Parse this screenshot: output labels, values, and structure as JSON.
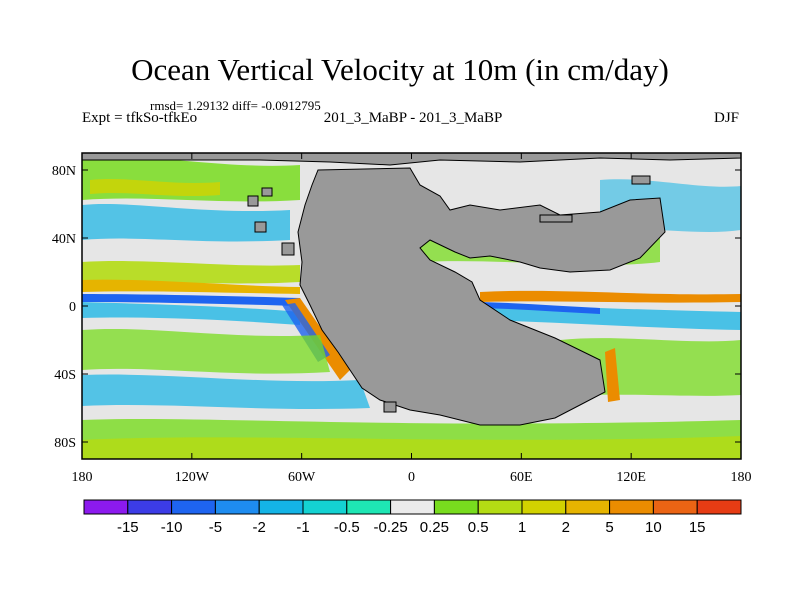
{
  "title": "Ocean Vertical Velocity at 10m (in cm/day)",
  "stats": "rmsd= 1.29132 diff= -0.0912795",
  "left_label": "Expt = tfkSo-tfkEo",
  "center_label": "201_3_MaBP - 201_3_MaBP",
  "right_label": "DJF",
  "map": {
    "lon_range": [
      -180,
      180
    ],
    "lat_range": [
      -90,
      90
    ],
    "x_ticks": [
      {
        "value": -180,
        "label": "180"
      },
      {
        "value": -120,
        "label": "120W"
      },
      {
        "value": -60,
        "label": "60W"
      },
      {
        "value": 0,
        "label": "0"
      },
      {
        "value": 60,
        "label": "60E"
      },
      {
        "value": 120,
        "label": "120E"
      },
      {
        "value": 180,
        "label": "180"
      }
    ],
    "y_ticks": [
      {
        "value": 80,
        "label": "80N"
      },
      {
        "value": 40,
        "label": "40N"
      },
      {
        "value": 0,
        "label": "0"
      },
      {
        "value": -40,
        "label": "40S"
      },
      {
        "value": -80,
        "label": "80S"
      }
    ],
    "land_color": "#999999",
    "ocean_color": "#e6e6e6"
  },
  "colorbar": {
    "colors": [
      "#8c1aee",
      "#3c3ce6",
      "#1e64f0",
      "#1e8cf0",
      "#14b4e6",
      "#14d2d2",
      "#1ee6b4",
      "#ebebeb",
      "#78dc1e",
      "#b4dc14",
      "#d2d200",
      "#e6b400",
      "#eb8c00",
      "#eb6414",
      "#e63c14"
    ],
    "labels": [
      "-15",
      "-10",
      "-5",
      "-2",
      "-1",
      "-0.5",
      "-0.25",
      "0.25",
      "0.5",
      "1",
      "2",
      "5",
      "10",
      "15"
    ]
  }
}
